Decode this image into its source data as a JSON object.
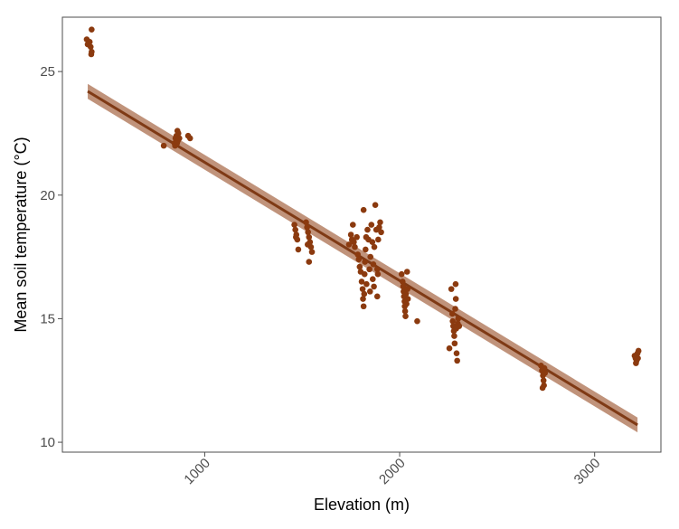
{
  "chart_data": {
    "type": "scatter",
    "title": "",
    "xlabel": "Elevation (m)",
    "ylabel": "Mean soil temperature (°C)",
    "xlim": [
      270,
      3340
    ],
    "ylim": [
      9.6,
      27.2
    ],
    "xticks": [
      1000,
      2000,
      3000
    ],
    "yticks": [
      10,
      15,
      20,
      25
    ],
    "grid": false,
    "legend": "none",
    "colors": {
      "points": "#8B3A0F",
      "line": "#7F3A15",
      "band": "#B58064",
      "panel_border": "#4d4d4d"
    },
    "points": [
      [
        395,
        26.3
      ],
      [
        420,
        26.7
      ],
      [
        410,
        26.2
      ],
      [
        415,
        26.0
      ],
      [
        420,
        25.8
      ],
      [
        418,
        25.7
      ],
      [
        400,
        26.1
      ],
      [
        790,
        22.0
      ],
      [
        845,
        22.1
      ],
      [
        850,
        22.3
      ],
      [
        855,
        22.4
      ],
      [
        860,
        22.6
      ],
      [
        862,
        22.2
      ],
      [
        865,
        22.5
      ],
      [
        870,
        22.3
      ],
      [
        848,
        22.0
      ],
      [
        858,
        22.1
      ],
      [
        915,
        22.4
      ],
      [
        925,
        22.3
      ],
      [
        1460,
        18.8
      ],
      [
        1465,
        18.6
      ],
      [
        1470,
        18.4
      ],
      [
        1475,
        18.2
      ],
      [
        1480,
        17.8
      ],
      [
        1468,
        18.3
      ],
      [
        1520,
        18.9
      ],
      [
        1525,
        18.7
      ],
      [
        1530,
        18.5
      ],
      [
        1535,
        18.3
      ],
      [
        1540,
        18.1
      ],
      [
        1545,
        17.9
      ],
      [
        1550,
        17.7
      ],
      [
        1535,
        17.3
      ],
      [
        1528,
        18.0
      ],
      [
        1740,
        18.0
      ],
      [
        1750,
        18.4
      ],
      [
        1755,
        18.2
      ],
      [
        1760,
        18.8
      ],
      [
        1765,
        18.1
      ],
      [
        1770,
        17.9
      ],
      [
        1780,
        18.3
      ],
      [
        1785,
        17.6
      ],
      [
        1790,
        17.4
      ],
      [
        1795,
        17.1
      ],
      [
        1800,
        16.9
      ],
      [
        1805,
        16.5
      ],
      [
        1810,
        16.2
      ],
      [
        1812,
        15.8
      ],
      [
        1815,
        15.5
      ],
      [
        1818,
        16.0
      ],
      [
        1820,
        16.8
      ],
      [
        1822,
        17.3
      ],
      [
        1825,
        17.8
      ],
      [
        1828,
        18.3
      ],
      [
        1830,
        16.4
      ],
      [
        1835,
        18.6
      ],
      [
        1840,
        18.2
      ],
      [
        1845,
        17.0
      ],
      [
        1848,
        16.1
      ],
      [
        1850,
        17.5
      ],
      [
        1855,
        18.8
      ],
      [
        1860,
        18.1
      ],
      [
        1862,
        16.6
      ],
      [
        1865,
        17.2
      ],
      [
        1868,
        16.3
      ],
      [
        1870,
        17.9
      ],
      [
        1875,
        19.6
      ],
      [
        1880,
        18.6
      ],
      [
        1885,
        17.0
      ],
      [
        1888,
        16.8
      ],
      [
        1890,
        18.2
      ],
      [
        1895,
        18.7
      ],
      [
        1900,
        18.9
      ],
      [
        1905,
        18.5
      ],
      [
        1885,
        15.9
      ],
      [
        1815,
        19.4
      ],
      [
        2010,
        16.8
      ],
      [
        2015,
        16.5
      ],
      [
        2018,
        16.3
      ],
      [
        2020,
        16.1
      ],
      [
        2022,
        15.9
      ],
      [
        2025,
        15.7
      ],
      [
        2026,
        15.5
      ],
      [
        2028,
        15.3
      ],
      [
        2030,
        15.1
      ],
      [
        2032,
        16.0
      ],
      [
        2035,
        15.6
      ],
      [
        2038,
        16.9
      ],
      [
        2040,
        16.2
      ],
      [
        2042,
        15.8
      ],
      [
        2090,
        14.9
      ],
      [
        2255,
        13.8
      ],
      [
        2265,
        16.2
      ],
      [
        2270,
        15.2
      ],
      [
        2272,
        14.9
      ],
      [
        2275,
        14.7
      ],
      [
        2278,
        14.5
      ],
      [
        2280,
        14.3
      ],
      [
        2282,
        14.0
      ],
      [
        2285,
        15.4
      ],
      [
        2287,
        16.4
      ],
      [
        2288,
        15.8
      ],
      [
        2290,
        14.6
      ],
      [
        2292,
        13.6
      ],
      [
        2295,
        13.3
      ],
      [
        2298,
        14.8
      ],
      [
        2300,
        15.0
      ],
      [
        2305,
        14.7
      ],
      [
        2725,
        13.1
      ],
      [
        2730,
        12.9
      ],
      [
        2735,
        12.7
      ],
      [
        2738,
        12.5
      ],
      [
        2740,
        12.3
      ],
      [
        2742,
        13.0
      ],
      [
        2745,
        12.8
      ],
      [
        2733,
        12.2
      ],
      [
        3205,
        13.5
      ],
      [
        3210,
        13.4
      ],
      [
        3215,
        13.3
      ],
      [
        3220,
        13.6
      ],
      [
        3225,
        13.7
      ],
      [
        3212,
        13.2
      ],
      [
        3222,
        13.4
      ]
    ],
    "fit": {
      "x": [
        400,
        3220
      ],
      "y": [
        24.2,
        10.7
      ],
      "ci_halfwidth": [
        0.3,
        0.3
      ]
    }
  }
}
